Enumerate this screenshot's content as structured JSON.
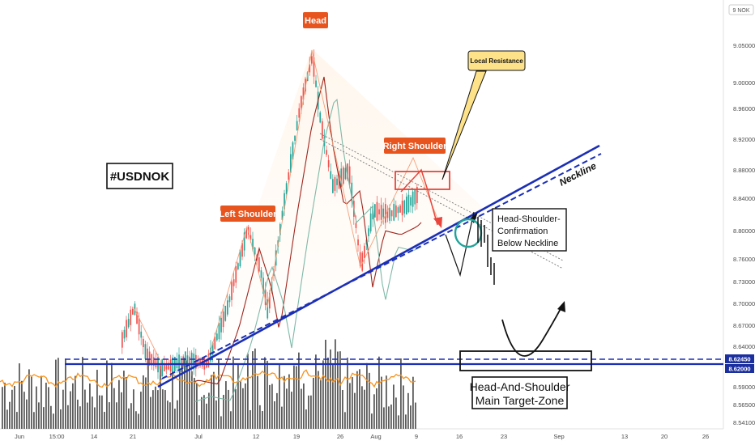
{
  "chart_data": {
    "type": "candlestick",
    "symbol_badge": "9 NOK",
    "title_tag": "#USDNOK",
    "y_axis": {
      "ticks": [
        "9.05000",
        "9.00000",
        "8.96000",
        "8.92000",
        "8.88000",
        "8.84000",
        "8.80000",
        "8.76000",
        "8.73000",
        "8.70000",
        "8.67000",
        "8.64000",
        "8.59000",
        "8.56500",
        "8.54100"
      ],
      "tick_values": [
        9.05,
        9.0,
        8.96,
        8.92,
        8.88,
        8.84,
        8.8,
        8.76,
        8.73,
        8.7,
        8.67,
        8.64,
        8.59,
        8.565,
        8.541
      ]
    },
    "x_axis": {
      "ticks": [
        "Jun",
        "15:00",
        "14",
        "21",
        "Jul",
        "12",
        "19",
        "26",
        "Aug",
        "9",
        "16",
        "23",
        "Sep",
        "13",
        "20",
        "26"
      ]
    },
    "price_levels": [
      {
        "label": "8.62450",
        "value": 8.6245,
        "color": "#1b2f9e"
      },
      {
        "label": "8.62000",
        "value": 8.62,
        "color": "#1b2f9e"
      }
    ],
    "annotations": {
      "head": "Head",
      "left_shoulder": "Left Shoulder",
      "right_shoulder": "Right Shoulder",
      "local_resistance": "Local Resistance",
      "neckline": "Neckline",
      "confirmation_lines": [
        "Head-Shoulder-",
        "Confirmation",
        "Below Neckline"
      ],
      "target_lines": [
        "Head-And-Shoulder",
        "Main Target-Zone"
      ]
    },
    "series": [
      {
        "kind": "candles",
        "description_color_up": "#26a69a",
        "description_color_down": "#ef5350"
      },
      {
        "kind": "volume",
        "color": "#555555"
      },
      {
        "kind": "oscillator",
        "color": "#f7931e"
      }
    ],
    "colors": {
      "neckline": "#1b2f9e",
      "callout": "#e8541e",
      "callout_yellow": "#fde28a",
      "up": "#26a69a",
      "down": "#ef5350"
    }
  }
}
